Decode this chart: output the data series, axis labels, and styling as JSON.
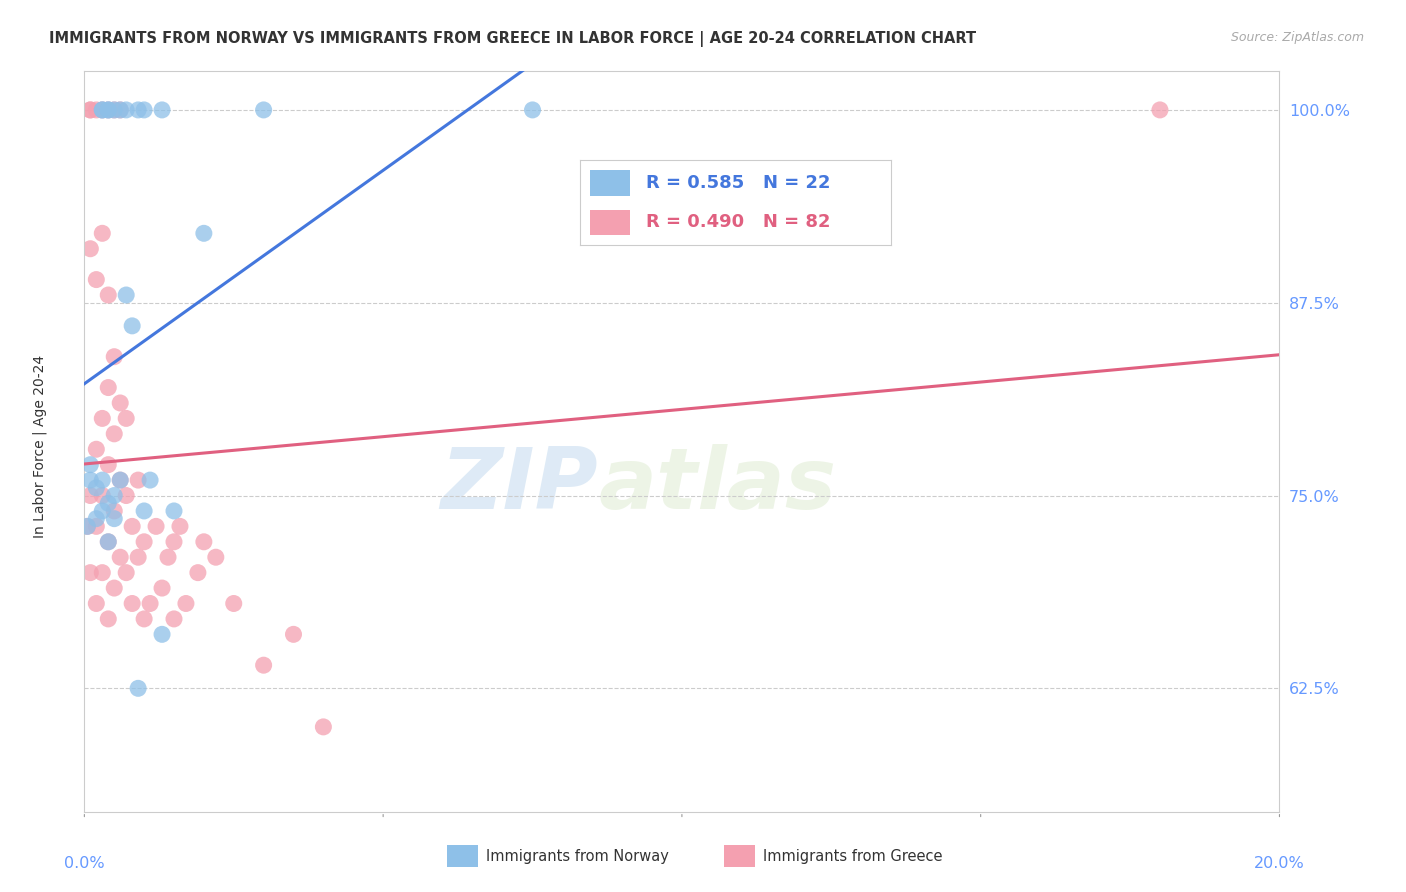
{
  "title": "IMMIGRANTS FROM NORWAY VS IMMIGRANTS FROM GREECE IN LABOR FORCE | AGE 20-24 CORRELATION CHART",
  "source": "Source: ZipAtlas.com",
  "ylabel": "In Labor Force | Age 20-24",
  "ylabel_right_ticks": [
    "100.0%",
    "87.5%",
    "75.0%",
    "62.5%"
  ],
  "ylabel_right_values": [
    1.0,
    0.875,
    0.75,
    0.625
  ],
  "xlim": [
    0.0,
    0.2
  ],
  "ylim": [
    0.545,
    1.025
  ],
  "norway_R": 0.585,
  "norway_N": 22,
  "greece_R": 0.49,
  "greece_N": 82,
  "norway_color": "#8ec0e8",
  "greece_color": "#f4a0b0",
  "norway_line_color": "#4477dd",
  "greece_line_color": "#e06080",
  "watermark_zip": "ZIP",
  "watermark_atlas": "atlas",
  "title_color": "#333333",
  "axis_color": "#6699ff",
  "grid_color": "#cccccc",
  "background_color": "#ffffff",
  "norway_x": [
    0.0005,
    0.001,
    0.001,
    0.002,
    0.002,
    0.003,
    0.003,
    0.004,
    0.004,
    0.005,
    0.005,
    0.006,
    0.007,
    0.008,
    0.009,
    0.01,
    0.011,
    0.013,
    0.015,
    0.02,
    0.03,
    0.075
  ],
  "norway_y": [
    0.73,
    0.76,
    0.77,
    0.735,
    0.755,
    0.74,
    0.76,
    0.72,
    0.745,
    0.735,
    0.75,
    0.76,
    0.88,
    0.86,
    0.625,
    0.74,
    0.76,
    0.66,
    0.74,
    0.92,
    1.0,
    1.0
  ],
  "norway_top_x": [
    0.003,
    0.003,
    0.004,
    0.004,
    0.005,
    0.006,
    0.007,
    0.009,
    0.01,
    0.013
  ],
  "norway_top_y": [
    1.0,
    1.0,
    1.0,
    1.0,
    1.0,
    1.0,
    1.0,
    1.0,
    1.0,
    1.0
  ],
  "greece_x": [
    0.0005,
    0.001,
    0.001,
    0.001,
    0.002,
    0.002,
    0.002,
    0.002,
    0.003,
    0.003,
    0.003,
    0.003,
    0.004,
    0.004,
    0.004,
    0.004,
    0.004,
    0.005,
    0.005,
    0.005,
    0.005,
    0.006,
    0.006,
    0.006,
    0.007,
    0.007,
    0.007,
    0.008,
    0.008,
    0.009,
    0.009,
    0.01,
    0.01,
    0.011,
    0.012,
    0.013,
    0.014,
    0.015,
    0.015,
    0.016,
    0.017,
    0.019,
    0.02,
    0.022,
    0.025,
    0.03,
    0.035,
    0.04,
    0.18
  ],
  "greece_y": [
    0.73,
    0.7,
    0.75,
    0.91,
    0.68,
    0.73,
    0.78,
    0.89,
    0.7,
    0.75,
    0.8,
    0.92,
    0.67,
    0.72,
    0.77,
    0.82,
    0.88,
    0.69,
    0.74,
    0.79,
    0.84,
    0.71,
    0.76,
    0.81,
    0.7,
    0.75,
    0.8,
    0.68,
    0.73,
    0.71,
    0.76,
    0.67,
    0.72,
    0.68,
    0.73,
    0.69,
    0.71,
    0.67,
    0.72,
    0.73,
    0.68,
    0.7,
    0.72,
    0.71,
    0.68,
    0.64,
    0.66,
    0.6,
    1.0
  ],
  "greece_top_x": [
    0.001,
    0.001,
    0.002,
    0.003,
    0.004,
    0.005,
    0.006
  ],
  "greece_top_y": [
    1.0,
    1.0,
    1.0,
    1.0,
    1.0,
    1.0,
    1.0
  ]
}
